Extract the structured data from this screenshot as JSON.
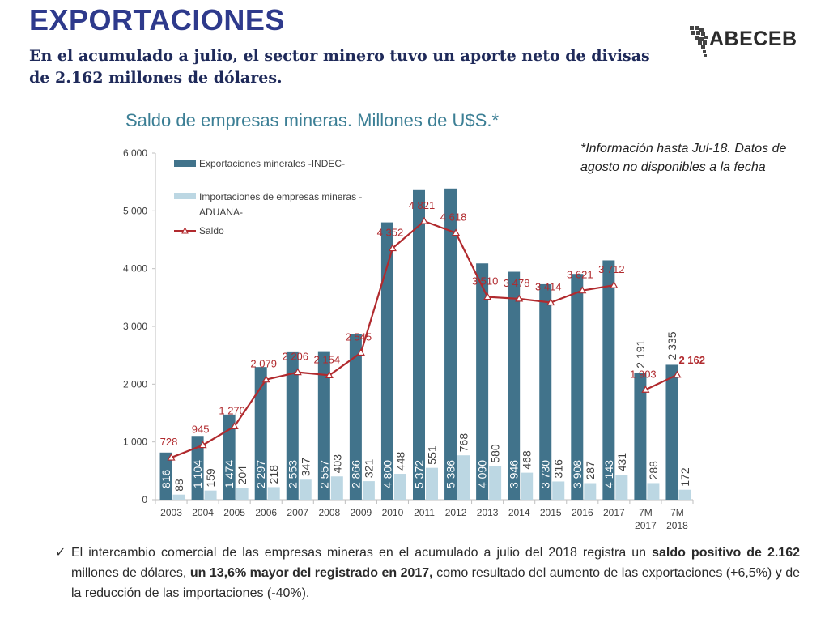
{
  "header": {
    "title": "EXPORTACIONES",
    "subtitle": "En el acumulado a julio, el sector minero tuvo un aporte neto de divisas de 2.162 millones de dólares.",
    "logo_text": "ABECEB"
  },
  "note": "*Información hasta Jul-18. Datos de agosto no disponibles a la fecha",
  "footer": {
    "check": "✓",
    "p1": "El intercambio comercial de las empresas mineras en el acumulado a julio del 2018 registra un ",
    "b1": "saldo positivo de 2.162",
    "p2": " millones de dólares, ",
    "b2": "un 13,6% mayor del registrado en 2017,",
    "p3": " como resultado del aumento de las exportaciones (+6,5%) y de la reducción de las importaciones (-40%)."
  },
  "colors": {
    "exports": "#41738b",
    "imports": "#bcd7e3",
    "saldo": "#b12a2e",
    "title": "#2e3a8c",
    "chart_title": "#3c7f95"
  },
  "chart_data": {
    "type": "bar",
    "title": "Saldo de empresas mineras. Millones de U$S.*",
    "categories": [
      "2003",
      "2004",
      "2005",
      "2006",
      "2007",
      "2008",
      "2009",
      "2010",
      "2011",
      "2012",
      "2013",
      "2014",
      "2015",
      "2016",
      "2017",
      "7M 2017",
      "7M 2018"
    ],
    "ylim": [
      0,
      6000
    ],
    "yticks": [
      0,
      1000,
      2000,
      3000,
      4000,
      5000,
      6000
    ],
    "ytick_labels": [
      "0",
      "1 000",
      "2 000",
      "3 000",
      "4 000",
      "5 000",
      "6 000"
    ],
    "legend_position": "top-left",
    "series": [
      {
        "name": "Exportaciones minerales -INDEC-",
        "kind": "bar",
        "values": [
          816,
          1104,
          1474,
          2297,
          2553,
          2557,
          2866,
          4800,
          5372,
          5386,
          4090,
          3946,
          3730,
          3908,
          4143,
          2191,
          2335
        ],
        "labels": [
          "816",
          "1 104",
          "1 474",
          "2 297",
          "2 553",
          "2 557",
          "2 866",
          "4 800",
          "5 372",
          "5 386",
          "4 090",
          "3 946",
          "3 730",
          "3 908",
          "4 143",
          "2 191",
          "2 335"
        ]
      },
      {
        "name": "Importaciones de empresas mineras -ADUANA-",
        "kind": "bar",
        "values": [
          88,
          159,
          204,
          218,
          347,
          403,
          321,
          448,
          551,
          768,
          580,
          468,
          316,
          287,
          431,
          288,
          172
        ],
        "labels": [
          "88",
          "159",
          "204",
          "218",
          "347",
          "403",
          "321",
          "448",
          "551",
          "768",
          "580",
          "468",
          "316",
          "287",
          "431",
          "288",
          "172"
        ]
      },
      {
        "name": "Saldo",
        "kind": "line",
        "values": [
          728,
          945,
          1270,
          2079,
          2206,
          2154,
          2545,
          4352,
          4821,
          4618,
          3510,
          3478,
          3414,
          3621,
          3712,
          1903,
          2162
        ],
        "labels": [
          "728",
          "945",
          "1 270",
          "2 079",
          "2 206",
          "2 154",
          "2 545",
          "4 352",
          "4 821",
          "4 618",
          "3 510",
          "3 478",
          "3 414",
          "3 621",
          "3 712",
          "1 903",
          "2 162"
        ],
        "line_breaks_before_index": 15
      }
    ]
  }
}
